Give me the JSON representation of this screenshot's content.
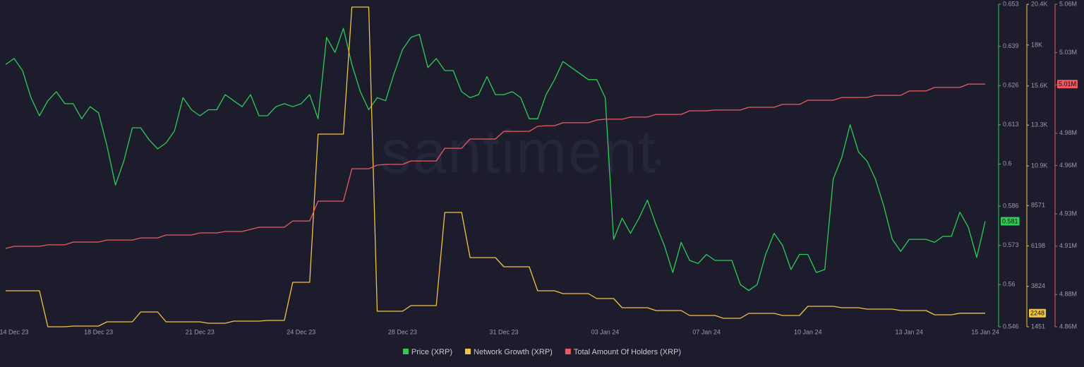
{
  "chart_data": {
    "type": "line",
    "watermark": "santiment",
    "categories": [
      null,
      "14 Dec 23",
      null,
      null,
      null,
      null,
      null,
      null,
      null,
      null,
      null,
      "18 Dec 23",
      null,
      null,
      null,
      null,
      null,
      null,
      null,
      null,
      null,
      null,
      null,
      "21 Dec 23",
      null,
      null,
      null,
      null,
      null,
      null,
      null,
      null,
      null,
      null,
      null,
      "24 Dec 23",
      null,
      null,
      null,
      null,
      null,
      null,
      null,
      null,
      null,
      null,
      null,
      "28 Dec 23",
      null,
      null,
      null,
      null,
      null,
      null,
      null,
      null,
      null,
      null,
      null,
      "31 Dec 23",
      null,
      null,
      null,
      null,
      null,
      null,
      null,
      null,
      null,
      null,
      null,
      "03 Jan 24",
      null,
      null,
      null,
      null,
      null,
      null,
      null,
      null,
      null,
      null,
      null,
      "07 Jan 24",
      null,
      null,
      null,
      null,
      null,
      null,
      null,
      null,
      null,
      null,
      null,
      "10 Jan 24",
      null,
      null,
      null,
      null,
      null,
      null,
      null,
      null,
      null,
      null,
      null,
      "13 Jan 24",
      null,
      null,
      null,
      null,
      null,
      null,
      null,
      null,
      "15 Jan 24"
    ],
    "ylim": [
      0.546,
      0.653
    ],
    "yticks": [
      0.653,
      0.639,
      0.626,
      0.613,
      0.6,
      0.586,
      0.573,
      0.56,
      0.546
    ],
    "y2lim": [
      1451,
      20400
    ],
    "y2ticks": [
      {
        "value": 20400,
        "label": "20.4K"
      },
      {
        "value": 18000,
        "label": "18K"
      },
      {
        "value": 15600,
        "label": "15.6K"
      },
      {
        "value": 13300,
        "label": "13.3K"
      },
      {
        "value": 10900,
        "label": "10.9K"
      },
      8571,
      6198,
      3824,
      1451
    ],
    "y3lim": [
      4860000,
      5060000
    ],
    "y3ticks": [
      {
        "value": 5060000,
        "label": "5.06M"
      },
      {
        "value": 5030000,
        "label": "5.03M"
      },
      {
        "value": 5010000,
        "label": "5.01M"
      },
      {
        "value": 4980000,
        "label": "4.98M"
      },
      {
        "value": 4960000,
        "label": "4.96M"
      },
      {
        "value": 4930000,
        "label": "4.93M"
      },
      {
        "value": 4910000,
        "label": "4.91M"
      },
      {
        "value": 4880000,
        "label": "4.88M"
      },
      {
        "value": 4860000,
        "label": "4.86M"
      }
    ],
    "series": [
      {
        "name": "Price (XRP)",
        "color": "#2ecc55",
        "axis": "y",
        "current_value_label": "0.581",
        "values": [
          0.633,
          0.635,
          0.631,
          0.622,
          0.616,
          0.621,
          0.624,
          0.62,
          0.62,
          0.615,
          0.619,
          0.617,
          0.606,
          0.593,
          0.601,
          0.612,
          0.612,
          0.608,
          0.605,
          0.607,
          0.611,
          0.622,
          0.618,
          0.616,
          0.618,
          0.618,
          0.623,
          0.621,
          0.619,
          0.623,
          0.616,
          0.616,
          0.619,
          0.62,
          0.619,
          0.62,
          0.623,
          0.615,
          0.642,
          0.637,
          0.645,
          0.633,
          0.624,
          0.618,
          0.622,
          0.621,
          0.63,
          0.638,
          0.642,
          0.643,
          0.632,
          0.635,
          0.631,
          0.631,
          0.624,
          0.622,
          0.623,
          0.629,
          0.623,
          0.623,
          0.624,
          0.622,
          0.615,
          0.615,
          0.623,
          0.628,
          0.634,
          0.632,
          0.63,
          0.628,
          0.628,
          0.622,
          0.575,
          0.582,
          0.577,
          0.582,
          0.588,
          0.58,
          0.573,
          0.564,
          0.574,
          0.568,
          0.567,
          0.57,
          0.568,
          0.568,
          0.568,
          0.56,
          0.558,
          0.56,
          0.57,
          0.577,
          0.573,
          0.565,
          0.57,
          0.57,
          0.564,
          0.565,
          0.595,
          0.602,
          0.613,
          0.604,
          0.601,
          0.595,
          0.586,
          0.575,
          0.571,
          0.575,
          0.575,
          0.575,
          0.574,
          0.576,
          0.576,
          0.584,
          0.579,
          0.569,
          0.581
        ]
      },
      {
        "name": "Network Growth (XRP)",
        "color": "#f2c443",
        "axis": "y2",
        "current_value_label": "2248",
        "values": [
          3566,
          3566,
          3566,
          3566,
          3566,
          1451,
          1451,
          1451,
          1492,
          1492,
          1492,
          1492,
          1741,
          1741,
          1741,
          1741,
          2322,
          2322,
          2322,
          1741,
          1741,
          1741,
          1741,
          1741,
          1658,
          1658,
          1658,
          1783,
          1783,
          1783,
          1783,
          1824,
          1824,
          1824,
          4063,
          4063,
          4063,
          12771,
          12771,
          12771,
          12771,
          20234,
          20234,
          20234,
          2363,
          2363,
          2363,
          2363,
          2695,
          2695,
          2695,
          2695,
          8168,
          8168,
          8168,
          5514,
          5514,
          5514,
          5514,
          4975,
          4975,
          4975,
          4975,
          3566,
          3566,
          3566,
          3400,
          3400,
          3400,
          3400,
          3110,
          3110,
          3110,
          2571,
          2571,
          2571,
          2571,
          2405,
          2405,
          2405,
          2405,
          2114,
          2114,
          2114,
          2114,
          1949,
          1949,
          1949,
          2239,
          2239,
          2239,
          2239,
          2114,
          2114,
          2114,
          2653,
          2653,
          2653,
          2653,
          2571,
          2571,
          2571,
          2488,
          2488,
          2488,
          2488,
          2405,
          2405,
          2405,
          2405,
          2156,
          2156,
          2156,
          2248,
          2248,
          2248,
          2248
        ]
      },
      {
        "name": "Total Amount Of Holders (XRP)",
        "color": "#ec5a60",
        "axis": "y3",
        "current_value_label": "5.01M",
        "values": [
          4908600,
          4909900,
          4909900,
          4909900,
          4909900,
          4910800,
          4910800,
          4910800,
          4912500,
          4912500,
          4912500,
          4912500,
          4913800,
          4913800,
          4913800,
          4913800,
          4915100,
          4915100,
          4915100,
          4916900,
          4916900,
          4916900,
          4916900,
          4918200,
          4918200,
          4918200,
          4919100,
          4919100,
          4919100,
          4920400,
          4921700,
          4921700,
          4921700,
          4921700,
          4925600,
          4925600,
          4925600,
          4937900,
          4937900,
          4937900,
          4937900,
          4958000,
          4958000,
          4958000,
          4960200,
          4960700,
          4960700,
          4960700,
          4962800,
          4962800,
          4962800,
          4962800,
          4970700,
          4970700,
          4970700,
          4976400,
          4976400,
          4976400,
          4976400,
          4981200,
          4981200,
          4981200,
          4981200,
          4984300,
          4984700,
          4984700,
          4986500,
          4986500,
          4986500,
          4986500,
          4988200,
          4988700,
          4988700,
          4988700,
          4990000,
          4990000,
          4990000,
          4991700,
          4991700,
          4991700,
          4991700,
          4993900,
          4993900,
          4993900,
          4994400,
          4994400,
          4994400,
          4994400,
          4996100,
          4996100,
          4996100,
          4996100,
          4997900,
          4997900,
          4997900,
          5000500,
          5000500,
          5000500,
          5000500,
          5002200,
          5002200,
          5002200,
          5002200,
          5003500,
          5003500,
          5003500,
          5003500,
          5006200,
          5006200,
          5006200,
          5008400,
          5008400,
          5008400,
          5008400,
          5010500,
          5010500,
          5010500
        ]
      }
    ]
  }
}
